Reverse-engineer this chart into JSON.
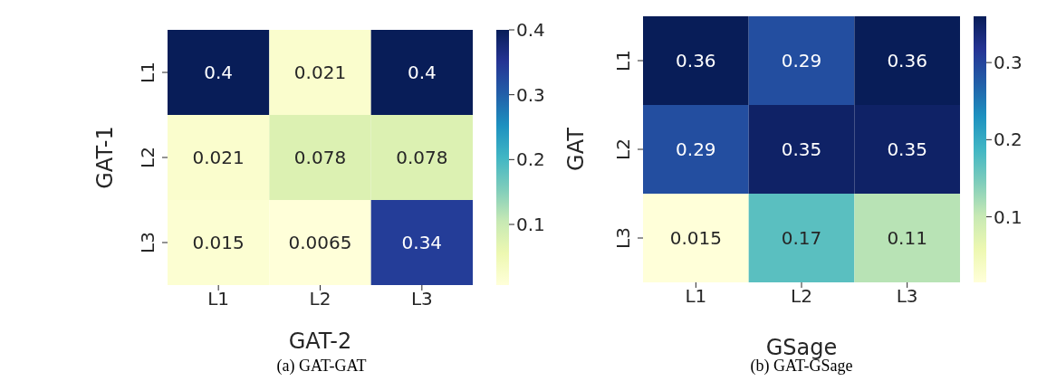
{
  "chart_data": [
    {
      "type": "heatmap",
      "xlabel": "GAT-2",
      "ylabel": "GAT-1",
      "categories": [
        "L1",
        "L2",
        "L3"
      ],
      "y_categories": [
        "L1",
        "L2",
        "L3"
      ],
      "cells": [
        [
          0.4,
          0.021,
          0.4
        ],
        [
          0.021,
          0.078,
          0.078
        ],
        [
          0.015,
          0.0065,
          0.34
        ]
      ],
      "data_labels": true,
      "clim": [
        0.0065,
        0.4
      ],
      "cticks": [
        0.1,
        0.2,
        0.3,
        0.4
      ],
      "annotations": [
        "(a) GAT-GAT"
      ]
    },
    {
      "type": "heatmap",
      "xlabel": "GSage",
      "ylabel": "GAT",
      "categories": [
        "L1",
        "L2",
        "L3"
      ],
      "y_categories": [
        "L1",
        "L2",
        "L3"
      ],
      "cells": [
        [
          0.36,
          0.29,
          0.36
        ],
        [
          0.29,
          0.35,
          0.35
        ],
        [
          0.015,
          0.17,
          0.11
        ]
      ],
      "data_labels": true,
      "clim": [
        0.015,
        0.36
      ],
      "cticks": [
        0.1,
        0.2,
        0.3
      ],
      "annotations": [
        "(b) GAT-GSage"
      ]
    }
  ]
}
